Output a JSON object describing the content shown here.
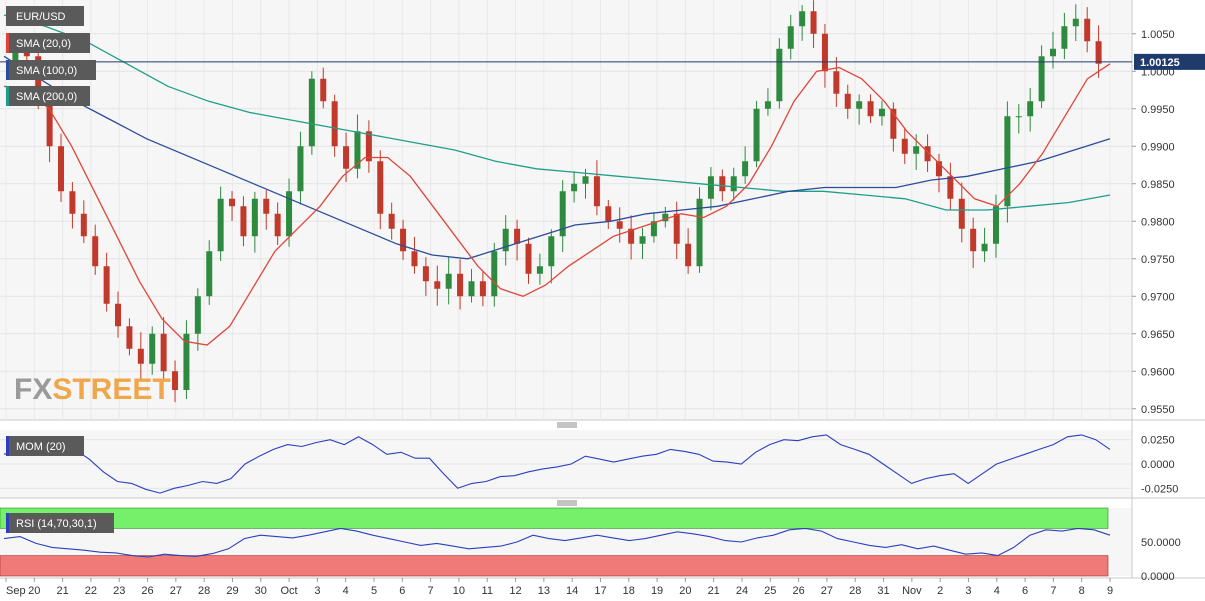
{
  "chart_data": {
    "type": "candlestick",
    "symbol": "EUR/USD",
    "current_price_label": "1.00125",
    "current_price": 1.00125,
    "indicators": [
      "SMA (20,0)",
      "SMA (100,0)",
      "SMA (200,0)"
    ],
    "y_ticks": [
      "1.0050",
      "1.0000",
      "0.9950",
      "0.9900",
      "0.9850",
      "0.9800",
      "0.9750",
      "0.9700",
      "0.9650",
      "0.9600",
      "0.9550"
    ],
    "ylim": [
      0.9535,
      1.0095
    ],
    "x_ticks": [
      "Sep",
      "20",
      "21",
      "22",
      "23",
      "26",
      "27",
      "28",
      "29",
      "30",
      "Oct",
      "3",
      "4",
      "5",
      "6",
      "7",
      "10",
      "11",
      "12",
      "13",
      "14",
      "17",
      "18",
      "19",
      "20",
      "21",
      "24",
      "25",
      "26",
      "27",
      "28",
      "31",
      "Nov",
      "2",
      "3",
      "4",
      "6",
      "7",
      "8",
      "9"
    ],
    "close_path": [
      1.001,
      1.003,
      1.002,
      0.9965,
      0.99,
      0.984,
      0.981,
      0.978,
      0.974,
      0.969,
      0.966,
      0.963,
      0.961,
      0.965,
      0.96,
      0.9575,
      0.965,
      0.97,
      0.976,
      0.983,
      0.982,
      0.978,
      0.983,
      0.981,
      0.978,
      0.984,
      0.99,
      0.999,
      0.996,
      0.99,
      0.987,
      0.992,
      0.988,
      0.981,
      0.979,
      0.976,
      0.974,
      0.972,
      0.971,
      0.973,
      0.97,
      0.972,
      0.97,
      0.976,
      0.979,
      0.977,
      0.973,
      0.974,
      0.978,
      0.984,
      0.985,
      0.986,
      0.982,
      0.98,
      0.979,
      0.977,
      0.978,
      0.98,
      0.981,
      0.977,
      0.974,
      0.983,
      0.986,
      0.984,
      0.986,
      0.988,
      0.995,
      0.996,
      1.003,
      1.006,
      1.008,
      1.005,
      1.0,
      0.997,
      0.995,
      0.996,
      0.994,
      0.995,
      0.991,
      0.989,
      0.99,
      0.988,
      0.986,
      0.983,
      0.979,
      0.976,
      0.977,
      0.982,
      0.994,
      0.994,
      0.996,
      1.002,
      1.003,
      1.006,
      1.007,
      1.004,
      1.001
    ],
    "sma20_path": [
      0.998,
      0.9975,
      0.995,
      0.99,
      0.984,
      0.978,
      0.972,
      0.967,
      0.964,
      0.9635,
      0.966,
      0.971,
      0.976,
      0.979,
      0.982,
      0.986,
      0.9885,
      0.9885,
      0.986,
      0.982,
      0.978,
      0.974,
      0.971,
      0.97,
      0.9715,
      0.974,
      0.976,
      0.978,
      0.979,
      0.98,
      0.981,
      0.9805,
      0.982,
      0.985,
      0.99,
      0.996,
      1.0,
      1.0005,
      0.999,
      0.996,
      0.992,
      0.989,
      0.986,
      0.983,
      0.982,
      0.985,
      0.989,
      0.994,
      0.999,
      1.001
    ],
    "sma100_path": [
      1.002,
      0.999,
      0.996,
      0.9935,
      0.991,
      0.989,
      0.987,
      0.985,
      0.983,
      0.981,
      0.979,
      0.977,
      0.9755,
      0.975,
      0.9765,
      0.978,
      0.9795,
      0.98,
      0.981,
      0.9815,
      0.982,
      0.983,
      0.984,
      0.9845,
      0.9845,
      0.9845,
      0.9855,
      0.986,
      0.987,
      0.988,
      0.9895,
      0.991
    ],
    "sma200_path": [
      1.0075,
      1.006,
      1.004,
      1.001,
      0.998,
      0.996,
      0.9945,
      0.9935,
      0.9925,
      0.9915,
      0.9905,
      0.9895,
      0.988,
      0.987,
      0.9865,
      0.986,
      0.9855,
      0.985,
      0.9845,
      0.984,
      0.984,
      0.9835,
      0.983,
      0.9815,
      0.9815,
      0.982,
      0.9825,
      0.9835
    ],
    "mom": {
      "label": "MOM (20)",
      "y_ticks": [
        "0.0250",
        "0.0000",
        "-0.0250"
      ],
      "ylim": [
        -0.035,
        0.035
      ],
      "values": [
        0.01,
        0.015,
        0.01,
        0.012,
        0.018,
        0.015,
        0.005,
        -0.008,
        -0.018,
        -0.02,
        -0.026,
        -0.03,
        -0.025,
        -0.022,
        -0.018,
        -0.02,
        -0.015,
        0.0,
        0.008,
        0.015,
        0.02,
        0.018,
        0.022,
        0.025,
        0.02,
        0.028,
        0.02,
        0.01,
        0.012,
        0.006,
        0.006,
        -0.01,
        -0.025,
        -0.02,
        -0.018,
        -0.013,
        -0.012,
        -0.008,
        -0.005,
        -0.003,
        0.0,
        0.008,
        0.005,
        0.002,
        0.005,
        0.008,
        0.01,
        0.015,
        0.013,
        0.01,
        0.003,
        0.002,
        0.0,
        0.012,
        0.02,
        0.025,
        0.024,
        0.028,
        0.03,
        0.02,
        0.015,
        0.01,
        0.0,
        -0.01,
        -0.02,
        -0.015,
        -0.012,
        -0.01,
        -0.02,
        -0.01,
        0.0,
        0.005,
        0.01,
        0.015,
        0.02,
        0.028,
        0.03,
        0.025,
        0.015
      ]
    },
    "rsi": {
      "label": "RSI (14,70,30,1)",
      "y_ticks": [
        "50.0000",
        "0.0000"
      ],
      "ylim": [
        0,
        100
      ],
      "overbought": 70,
      "oversold": 30,
      "values": [
        55,
        58,
        48,
        42,
        40,
        38,
        35,
        34,
        30,
        28,
        32,
        30,
        29,
        33,
        40,
        55,
        60,
        58,
        56,
        60,
        65,
        70,
        66,
        60,
        55,
        50,
        45,
        48,
        44,
        40,
        42,
        44,
        50,
        60,
        55,
        52,
        56,
        60,
        56,
        52,
        55,
        60,
        65,
        62,
        58,
        52,
        50,
        56,
        60,
        68,
        70,
        66,
        55,
        50,
        45,
        42,
        46,
        40,
        44,
        38,
        32,
        34,
        30,
        42,
        60,
        68,
        66,
        70,
        68,
        60
      ]
    }
  },
  "branding": {
    "logo_fx": "FX",
    "logo_street": "STREET"
  }
}
